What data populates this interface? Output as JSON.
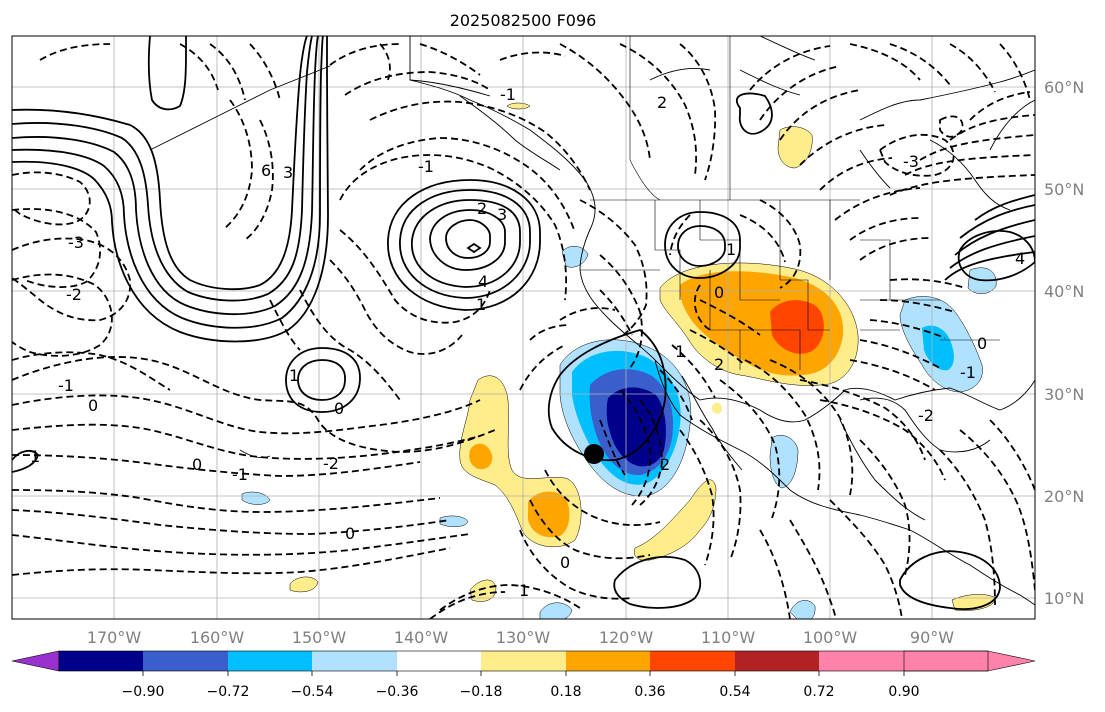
{
  "map": {
    "title": "2025082500 F096",
    "lat_labels": [
      "60°N",
      "50°N",
      "40°N",
      "30°N",
      "20°N",
      "10°N"
    ],
    "lon_labels": [
      "170°W",
      "160°W",
      "150°W",
      "140°W",
      "130°W",
      "120°W",
      "110°W",
      "100°W",
      "90°W"
    ],
    "storm_marker": "Tropical cyclone center near 24°N 123°W",
    "contour_labels": [
      "6",
      "3",
      "-3",
      "-2",
      "-1",
      "0",
      "3",
      "-1",
      "4",
      "1",
      "2",
      "-2",
      "1",
      "0",
      "0",
      "-1",
      "2",
      "0",
      "0",
      "1",
      "-3",
      "4",
      "1",
      "0",
      "-2",
      "-1",
      "0",
      "2",
      "2",
      "1",
      "-1",
      "1"
    ]
  },
  "colorbar": {
    "ticks": [
      "−0.90",
      "−0.72",
      "−0.54",
      "−0.36",
      "−0.18",
      "0.18",
      "0.36",
      "0.54",
      "0.72",
      "0.90"
    ],
    "colors": [
      "#9932cc",
      "#00008b",
      "#3a5fcd",
      "#00bfff",
      "#b0e2ff",
      "#ffffff",
      "#ffec8b",
      "#ffa500",
      "#ff4500",
      "#b22222",
      "#ff82ab"
    ]
  }
}
